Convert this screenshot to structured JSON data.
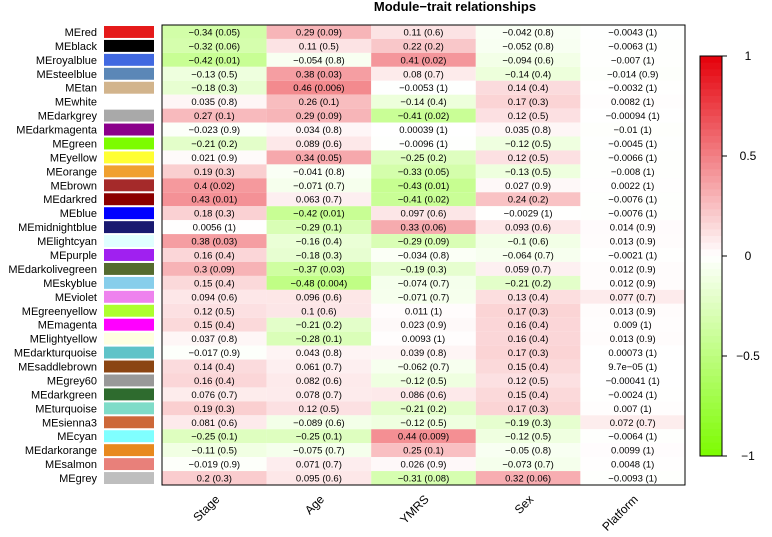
{
  "chart_data": {
    "type": "heatmap",
    "title": "Module−trait relationships",
    "columns": [
      "Stage",
      "Age",
      "YMRS",
      "Sex",
      "Platform"
    ],
    "rows": [
      {
        "name": "MEred",
        "swatch": "#e51a1a",
        "values": [
          -0.34,
          0.29,
          0.11,
          -0.042,
          -0.0043
        ],
        "labels": [
          "−0.34 (0.05)",
          "0.29 (0.09)",
          "0.11 (0.6)",
          "−0.042 (0.8)",
          "−0.0043 (1)"
        ]
      },
      {
        "name": "MEblack",
        "swatch": "#000000",
        "values": [
          -0.32,
          0.11,
          0.22,
          -0.052,
          -0.0063
        ],
        "labels": [
          "−0.32 (0.06)",
          "0.11 (0.5)",
          "0.22 (0.2)",
          "−0.052 (0.8)",
          "−0.0063 (1)"
        ]
      },
      {
        "name": "MEroyalblue",
        "swatch": "#4169e1",
        "values": [
          -0.42,
          -0.054,
          0.41,
          -0.094,
          -0.007
        ],
        "labels": [
          "−0.42 (0.01)",
          "−0.054 (0.8)",
          "0.41 (0.02)",
          "−0.094 (0.6)",
          "−0.007 (1)"
        ]
      },
      {
        "name": "MEsteelblue",
        "swatch": "#5b87b7",
        "values": [
          -0.13,
          0.38,
          0.08,
          -0.14,
          -0.014
        ],
        "labels": [
          "−0.13 (0.5)",
          "0.38 (0.03)",
          "0.08 (0.7)",
          "−0.14 (0.4)",
          "−0.014 (0.9)"
        ]
      },
      {
        "name": "MEtan",
        "swatch": "#d2b48c",
        "values": [
          -0.18,
          0.46,
          -0.0053,
          0.14,
          -0.0032
        ],
        "labels": [
          "−0.18 (0.3)",
          "0.46 (0.006)",
          "−0.0053 (1)",
          "0.14 (0.4)",
          "−0.0032 (1)"
        ]
      },
      {
        "name": "MEwhite",
        "swatch": "#ffffff",
        "values": [
          0.035,
          0.26,
          -0.14,
          0.17,
          0.0082
        ],
        "labels": [
          "0.035 (0.8)",
          "0.26 (0.1)",
          "−0.14 (0.4)",
          "0.17 (0.3)",
          "0.0082 (1)"
        ]
      },
      {
        "name": "MEdarkgrey",
        "swatch": "#a9a9a9",
        "values": [
          0.27,
          0.29,
          -0.41,
          0.12,
          -0.00094
        ],
        "labels": [
          "0.27 (0.1)",
          "0.29 (0.09)",
          "−0.41 (0.02)",
          "0.12 (0.5)",
          "−0.00094 (1)"
        ]
      },
      {
        "name": "MEdarkmagenta",
        "swatch": "#8b008b",
        "values": [
          -0.023,
          0.034,
          0.00039,
          0.035,
          -0.01
        ],
        "labels": [
          "−0.023 (0.9)",
          "0.034 (0.8)",
          "0.00039 (1)",
          "0.035 (0.8)",
          "−0.01 (1)"
        ]
      },
      {
        "name": "MEgreen",
        "swatch": "#7cfc00",
        "values": [
          -0.21,
          0.089,
          -0.0096,
          -0.12,
          -0.0045
        ],
        "labels": [
          "−0.21 (0.2)",
          "0.089 (0.6)",
          "−0.0096 (1)",
          "−0.12 (0.5)",
          "−0.0045 (1)"
        ]
      },
      {
        "name": "MEyellow",
        "swatch": "#ffff33",
        "values": [
          0.021,
          0.34,
          -0.25,
          0.12,
          -0.0066
        ],
        "labels": [
          "0.021 (0.9)",
          "0.34 (0.05)",
          "−0.25 (0.2)",
          "0.12 (0.5)",
          "−0.0066 (1)"
        ]
      },
      {
        "name": "MEorange",
        "swatch": "#f0a030",
        "values": [
          0.19,
          -0.041,
          -0.33,
          -0.13,
          -0.008
        ],
        "labels": [
          "0.19 (0.3)",
          "−0.041 (0.8)",
          "−0.33 (0.05)",
          "−0.13 (0.5)",
          "−0.008 (1)"
        ]
      },
      {
        "name": "MEbrown",
        "swatch": "#a52a2a",
        "values": [
          0.4,
          -0.071,
          -0.43,
          0.027,
          0.0022
        ],
        "labels": [
          "0.4 (0.02)",
          "−0.071 (0.7)",
          "−0.43 (0.01)",
          "0.027 (0.9)",
          "0.0022 (1)"
        ]
      },
      {
        "name": "MEdarkred",
        "swatch": "#8b0000",
        "values": [
          0.43,
          0.063,
          -0.41,
          0.24,
          -0.0076
        ],
        "labels": [
          "0.43 (0.01)",
          "0.063 (0.7)",
          "−0.41 (0.02)",
          "0.24 (0.2)",
          "−0.0076 (1)"
        ]
      },
      {
        "name": "MEblue",
        "swatch": "#0000ff",
        "values": [
          0.18,
          -0.42,
          0.097,
          -0.0029,
          -0.0076
        ],
        "labels": [
          "0.18 (0.3)",
          "−0.42 (0.01)",
          "0.097 (0.6)",
          "−0.0029 (1)",
          "−0.0076 (1)"
        ]
      },
      {
        "name": "MEmidnightblue",
        "swatch": "#191970",
        "values": [
          0.0056,
          -0.29,
          0.33,
          0.093,
          0.014
        ],
        "labels": [
          "0.0056 (1)",
          "−0.29 (0.1)",
          "0.33 (0.06)",
          "0.093 (0.6)",
          "0.014 (0.9)"
        ]
      },
      {
        "name": "MElightcyan",
        "swatch": "#e0ffff",
        "values": [
          0.38,
          -0.16,
          -0.29,
          -0.1,
          0.013
        ],
        "labels": [
          "0.38 (0.03)",
          "−0.16 (0.4)",
          "−0.29 (0.09)",
          "−0.1 (0.6)",
          "0.013 (0.9)"
        ]
      },
      {
        "name": "MEpurple",
        "swatch": "#a020f0",
        "values": [
          0.16,
          -0.18,
          -0.034,
          -0.064,
          -0.0021
        ],
        "labels": [
          "0.16 (0.4)",
          "−0.18 (0.3)",
          "−0.034 (0.8)",
          "−0.064 (0.7)",
          "−0.0021 (1)"
        ]
      },
      {
        "name": "MEdarkolivegreen",
        "swatch": "#556b2f",
        "values": [
          0.3,
          -0.37,
          -0.19,
          0.059,
          0.012
        ],
        "labels": [
          "0.3 (0.09)",
          "−0.37 (0.03)",
          "−0.19 (0.3)",
          "0.059 (0.7)",
          "0.012 (0.9)"
        ]
      },
      {
        "name": "MEskyblue",
        "swatch": "#87ceeb",
        "values": [
          0.15,
          -0.48,
          -0.074,
          -0.21,
          0.012
        ],
        "labels": [
          "0.15 (0.4)",
          "−0.48 (0.004)",
          "−0.074 (0.7)",
          "−0.21 (0.2)",
          "0.012 (0.9)"
        ]
      },
      {
        "name": "MEviolet",
        "swatch": "#ee82ee",
        "values": [
          0.094,
          0.096,
          -0.071,
          0.13,
          0.077
        ],
        "labels": [
          "0.094 (0.6)",
          "0.096 (0.6)",
          "−0.071 (0.7)",
          "0.13 (0.4)",
          "0.077 (0.7)"
        ]
      },
      {
        "name": "MEgreenyellow",
        "swatch": "#adff2f",
        "values": [
          0.12,
          0.1,
          0.011,
          0.17,
          0.013
        ],
        "labels": [
          "0.12 (0.5)",
          "0.1 (0.6)",
          "0.011 (1)",
          "0.17 (0.3)",
          "0.013 (0.9)"
        ]
      },
      {
        "name": "MEmagenta",
        "swatch": "#ff00ff",
        "values": [
          0.15,
          -0.21,
          0.023,
          0.16,
          0.009
        ],
        "labels": [
          "0.15 (0.4)",
          "−0.21 (0.2)",
          "0.023 (0.9)",
          "0.16 (0.4)",
          "0.009 (1)"
        ]
      },
      {
        "name": "MElightyellow",
        "swatch": "#ffffe0",
        "values": [
          0.037,
          -0.28,
          0.0093,
          0.16,
          0.013
        ],
        "labels": [
          "0.037 (0.8)",
          "−0.28 (0.1)",
          "0.0093 (1)",
          "0.16 (0.4)",
          "0.013 (0.9)"
        ]
      },
      {
        "name": "MEdarkturquoise",
        "swatch": "#5fc3c8",
        "values": [
          -0.017,
          0.043,
          0.039,
          0.17,
          0.00073
        ],
        "labels": [
          "−0.017 (0.9)",
          "0.043 (0.8)",
          "0.039 (0.8)",
          "0.17 (0.3)",
          "0.00073 (1)"
        ]
      },
      {
        "name": "MEsaddlebrown",
        "swatch": "#8b4513",
        "values": [
          0.14,
          0.061,
          -0.062,
          0.15,
          9.7e-05
        ],
        "labels": [
          "0.14 (0.4)",
          "0.061 (0.7)",
          "−0.062 (0.7)",
          "0.15 (0.4)",
          "9.7e−05 (1)"
        ]
      },
      {
        "name": "MEgrey60",
        "swatch": "#999999",
        "values": [
          0.16,
          0.082,
          -0.12,
          0.12,
          -0.00041
        ],
        "labels": [
          "0.16 (0.4)",
          "0.082 (0.6)",
          "−0.12 (0.5)",
          "0.12 (0.5)",
          "−0.00041 (1)"
        ]
      },
      {
        "name": "MEdarkgreen",
        "swatch": "#2e6b2e",
        "values": [
          0.076,
          0.078,
          0.086,
          0.15,
          -0.0024
        ],
        "labels": [
          "0.076 (0.7)",
          "0.078 (0.7)",
          "0.086 (0.6)",
          "0.15 (0.4)",
          "−0.0024 (1)"
        ]
      },
      {
        "name": "MEturquoise",
        "swatch": "#7fdcc8",
        "values": [
          0.19,
          0.12,
          -0.21,
          0.17,
          0.007
        ],
        "labels": [
          "0.19 (0.3)",
          "0.12 (0.5)",
          "−0.21 (0.2)",
          "0.17 (0.3)",
          "0.007 (1)"
        ]
      },
      {
        "name": "MEsienna3",
        "swatch": "#cd6839",
        "values": [
          0.081,
          -0.089,
          -0.12,
          -0.19,
          0.072
        ],
        "labels": [
          "0.081 (0.6)",
          "−0.089 (0.6)",
          "−0.12 (0.5)",
          "−0.19 (0.3)",
          "0.072 (0.7)"
        ]
      },
      {
        "name": "MEcyan",
        "swatch": "#7fffff",
        "values": [
          -0.25,
          -0.25,
          0.44,
          -0.12,
          -0.0064
        ],
        "labels": [
          "−0.25 (0.1)",
          "−0.25 (0.1)",
          "0.44 (0.009)",
          "−0.12 (0.5)",
          "−0.0064 (1)"
        ]
      },
      {
        "name": "MEdarkorange",
        "swatch": "#e8891e",
        "values": [
          -0.11,
          -0.075,
          0.25,
          -0.05,
          0.0099
        ],
        "labels": [
          "−0.11 (0.5)",
          "−0.075 (0.7)",
          "0.25 (0.1)",
          "−0.05 (0.8)",
          "0.0099 (1)"
        ]
      },
      {
        "name": "MEsalmon",
        "swatch": "#e8807a",
        "values": [
          -0.019,
          0.071,
          0.026,
          -0.073,
          0.0048
        ],
        "labels": [
          "−0.019 (0.9)",
          "0.071 (0.7)",
          "0.026 (0.9)",
          "−0.073 (0.7)",
          "0.0048 (1)"
        ]
      },
      {
        "name": "MEgrey",
        "swatch": "#bebebe",
        "values": [
          0.2,
          0.095,
          -0.31,
          0.32,
          -0.0093
        ],
        "labels": [
          "0.2 (0.3)",
          "0.095 (0.6)",
          "−0.31 (0.08)",
          "0.32 (0.06)",
          "−0.0093 (1)"
        ]
      }
    ],
    "colorbar": {
      "min": -1,
      "max": 1,
      "ticks": [
        1,
        0.5,
        0,
        -0.5,
        -1
      ],
      "tick_labels": [
        "1",
        "0.5",
        "0",
        "−0.5",
        "−1"
      ],
      "colors": {
        "low": "#7cfc00",
        "mid": "#ffffff",
        "high": "#e5000a"
      }
    }
  }
}
